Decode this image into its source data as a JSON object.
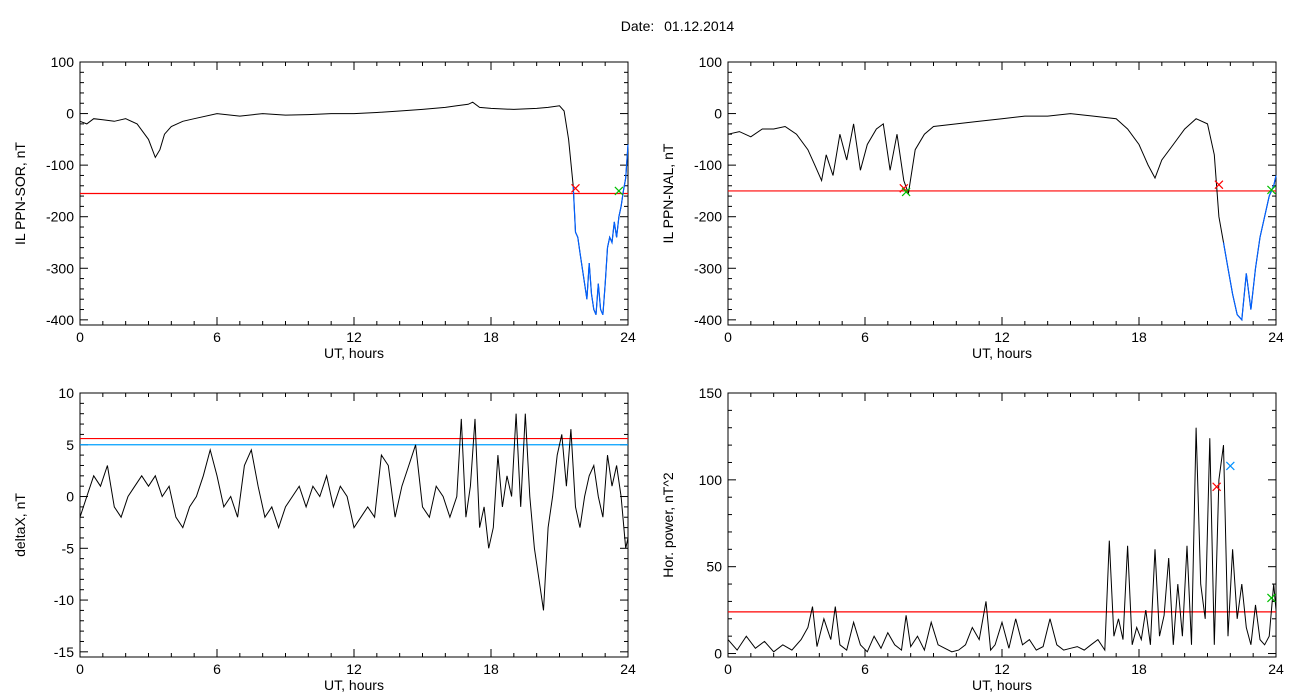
{
  "header": {
    "date_label": "Date:",
    "date_value": "01.12.2014"
  },
  "colors": {
    "trace": "#000000",
    "threshold": "#ff0000",
    "threshold2": "#00a0ff",
    "highlight": "#0060ff",
    "marker_red": "#ff0000",
    "marker_green": "#00c000",
    "marker_blue": "#0090ff"
  },
  "chart_data": [
    {
      "type": "line",
      "ylabel": "IL PPN-SOR, nT",
      "xlabel": "UT, hours",
      "xlim": [
        0,
        24
      ],
      "ylim": [
        -410,
        100
      ],
      "xticks": [
        "0",
        "6",
        "12",
        "18",
        "24"
      ],
      "yticks": [
        "100",
        "0",
        "-100",
        "-200",
        "-300",
        "-400"
      ],
      "ytick_values": [
        100,
        0,
        -100,
        -200,
        -300,
        -400
      ],
      "thresholds": [
        {
          "value": -155,
          "color": "red"
        }
      ],
      "highlight_range": [
        21.6,
        24
      ],
      "series": [
        {
          "x": [
            0,
            0.3,
            0.6,
            1.0,
            1.5,
            2.0,
            2.5,
            3.0,
            3.3,
            3.5,
            3.7,
            4.0,
            4.5,
            5.0,
            6.0,
            7.0,
            8.0,
            9.0,
            10.0,
            11.0,
            12.0,
            13.0,
            14.0,
            15.0,
            16.0,
            16.5,
            17.0,
            17.2,
            17.5,
            18.0,
            19.0,
            20.0,
            20.5,
            21.0,
            21.2,
            21.4,
            21.6,
            21.7,
            21.8,
            21.9,
            22.0,
            22.1,
            22.2,
            22.3,
            22.4,
            22.5,
            22.6,
            22.7,
            22.8,
            22.9,
            23.0,
            23.1,
            23.2,
            23.3,
            23.4,
            23.5,
            23.6,
            23.7,
            23.8,
            23.9,
            24.0
          ],
          "values": [
            -15,
            -20,
            -10,
            -12,
            -15,
            -10,
            -20,
            -50,
            -85,
            -70,
            -40,
            -25,
            -15,
            -10,
            0,
            -5,
            0,
            -3,
            -2,
            0,
            0,
            2,
            5,
            8,
            12,
            15,
            18,
            22,
            12,
            10,
            8,
            10,
            12,
            15,
            5,
            -50,
            -140,
            -230,
            -240,
            -270,
            -300,
            -330,
            -360,
            -290,
            -350,
            -380,
            -390,
            -330,
            -380,
            -390,
            -330,
            -260,
            -240,
            -250,
            -210,
            -240,
            -200,
            -180,
            -150,
            -125,
            -60
          ]
        }
      ],
      "markers": [
        {
          "x": 21.7,
          "y": -145,
          "color": "red"
        },
        {
          "x": 23.6,
          "y": -150,
          "color": "green"
        }
      ]
    },
    {
      "type": "line",
      "ylabel": "IL PPN-NAL, nT",
      "xlabel": "UT, hours",
      "xlim": [
        0,
        24
      ],
      "ylim": [
        -410,
        100
      ],
      "xticks": [
        "0",
        "6",
        "12",
        "18",
        "24"
      ],
      "yticks": [
        "100",
        "0",
        "-100",
        "-200",
        "-300",
        "-400"
      ],
      "ytick_values": [
        100,
        0,
        -100,
        -200,
        -300,
        -400
      ],
      "thresholds": [
        {
          "value": -150,
          "color": "red"
        }
      ],
      "highlight_range": [
        21.6,
        24
      ],
      "series": [
        {
          "x": [
            0,
            0.5,
            1.0,
            1.5,
            2.0,
            2.5,
            3.0,
            3.5,
            3.8,
            4.1,
            4.3,
            4.6,
            4.9,
            5.2,
            5.5,
            5.8,
            6.1,
            6.5,
            6.8,
            7.1,
            7.4,
            7.7,
            7.9,
            8.2,
            8.6,
            9.0,
            10.0,
            11.0,
            12.0,
            13.0,
            14.0,
            15.0,
            16.0,
            17.0,
            17.5,
            18.0,
            18.4,
            18.7,
            19.0,
            19.5,
            20.0,
            20.5,
            21.0,
            21.3,
            21.5,
            21.7,
            21.9,
            22.1,
            22.3,
            22.5,
            22.7,
            22.9,
            23.1,
            23.3,
            23.5,
            23.7,
            23.9,
            24.0
          ],
          "values": [
            -40,
            -35,
            -45,
            -30,
            -30,
            -25,
            -40,
            -70,
            -100,
            -130,
            -80,
            -120,
            -40,
            -90,
            -20,
            -110,
            -60,
            -30,
            -20,
            -110,
            -40,
            -130,
            -155,
            -70,
            -40,
            -25,
            -20,
            -15,
            -10,
            -5,
            -5,
            0,
            -5,
            -10,
            -30,
            -60,
            -100,
            -125,
            -90,
            -60,
            -30,
            -10,
            -20,
            -80,
            -200,
            -250,
            -300,
            -350,
            -390,
            -400,
            -310,
            -380,
            -300,
            -240,
            -200,
            -160,
            -140,
            -120
          ]
        }
      ],
      "markers": [
        {
          "x": 7.7,
          "y": -145,
          "color": "red"
        },
        {
          "x": 7.8,
          "y": -152,
          "color": "green"
        },
        {
          "x": 21.5,
          "y": -138,
          "color": "red"
        },
        {
          "x": 23.8,
          "y": -148,
          "color": "green"
        }
      ]
    },
    {
      "type": "line",
      "ylabel": "deltaX, nT",
      "xlabel": "UT, hours",
      "xlim": [
        0,
        24
      ],
      "ylim": [
        -15.5,
        10
      ],
      "xticks": [
        "0",
        "6",
        "12",
        "18",
        "24"
      ],
      "yticks": [
        "10",
        "5",
        "0",
        "-5",
        "-10",
        "-15"
      ],
      "ytick_values": [
        10,
        5,
        0,
        -5,
        -10,
        -15
      ],
      "thresholds": [
        {
          "value": 5.6,
          "color": "red"
        },
        {
          "value": 5.0,
          "color": "cyan"
        }
      ],
      "series": [
        {
          "x": [
            0,
            0.3,
            0.6,
            0.9,
            1.2,
            1.5,
            1.8,
            2.1,
            2.4,
            2.7,
            3.0,
            3.3,
            3.6,
            3.9,
            4.2,
            4.5,
            4.8,
            5.1,
            5.4,
            5.7,
            6.0,
            6.3,
            6.6,
            6.9,
            7.2,
            7.5,
            7.8,
            8.1,
            8.4,
            8.7,
            9.0,
            9.3,
            9.6,
            9.9,
            10.2,
            10.5,
            10.8,
            11.1,
            11.4,
            11.7,
            12.0,
            12.3,
            12.6,
            12.9,
            13.2,
            13.5,
            13.8,
            14.1,
            14.4,
            14.7,
            15.0,
            15.3,
            15.6,
            15.9,
            16.2,
            16.5,
            16.7,
            16.9,
            17.1,
            17.3,
            17.5,
            17.7,
            17.9,
            18.1,
            18.3,
            18.5,
            18.7,
            18.9,
            19.1,
            19.3,
            19.5,
            19.7,
            19.9,
            20.1,
            20.3,
            20.5,
            20.7,
            20.9,
            21.1,
            21.3,
            21.5,
            21.7,
            21.9,
            22.1,
            22.3,
            22.5,
            22.7,
            22.9,
            23.1,
            23.3,
            23.5,
            23.7,
            23.9,
            24.0
          ],
          "values": [
            -2,
            0,
            2,
            1,
            3,
            -1,
            -2,
            0,
            1,
            2,
            1,
            2,
            0,
            1,
            -2,
            -3,
            -1,
            0,
            2,
            4.5,
            2,
            -1,
            0,
            -2,
            3,
            4.5,
            1,
            -2,
            -1,
            -3,
            -1,
            0,
            1,
            -1,
            1,
            0,
            2,
            -1,
            1,
            0,
            -3,
            -2,
            -1,
            -2,
            4,
            3,
            -2,
            1,
            3,
            5,
            -1,
            -2,
            1,
            0,
            -2,
            0,
            7.5,
            -2,
            1,
            7.5,
            -3,
            -1,
            -5,
            -3,
            4,
            -1,
            2,
            0,
            8,
            -1,
            8,
            0,
            -5,
            -8,
            -11,
            -3,
            0,
            4,
            6,
            1,
            6.5,
            -1,
            -3,
            0,
            2,
            3,
            0,
            -2,
            4,
            1,
            3,
            0,
            -5,
            -4
          ]
        }
      ],
      "markers": []
    },
    {
      "type": "line",
      "ylabel": "Hor. power, nT^2",
      "xlabel": "UT, hours",
      "xlim": [
        0,
        24
      ],
      "ylim": [
        -2,
        150
      ],
      "xticks": [
        "0",
        "6",
        "12",
        "18",
        "24"
      ],
      "yticks": [
        "150",
        "100",
        "50",
        "0"
      ],
      "ytick_values": [
        150,
        100,
        50,
        0
      ],
      "thresholds": [
        {
          "value": 24,
          "color": "red"
        }
      ],
      "series": [
        {
          "x": [
            0,
            0.4,
            0.8,
            1.2,
            1.6,
            2.0,
            2.4,
            2.8,
            3.2,
            3.5,
            3.7,
            3.9,
            4.2,
            4.5,
            4.7,
            4.9,
            5.2,
            5.5,
            5.8,
            6.1,
            6.4,
            6.7,
            7.0,
            7.3,
            7.6,
            7.8,
            8.0,
            8.3,
            8.6,
            8.9,
            9.2,
            9.5,
            9.8,
            10.1,
            10.4,
            10.7,
            11.0,
            11.3,
            11.5,
            11.7,
            12.0,
            12.3,
            12.6,
            12.9,
            13.2,
            13.5,
            13.8,
            14.1,
            14.4,
            14.7,
            15.0,
            15.3,
            15.6,
            15.9,
            16.2,
            16.5,
            16.7,
            16.9,
            17.1,
            17.3,
            17.5,
            17.7,
            17.9,
            18.1,
            18.3,
            18.5,
            18.7,
            18.9,
            19.1,
            19.3,
            19.5,
            19.7,
            19.9,
            20.1,
            20.3,
            20.5,
            20.7,
            20.9,
            21.1,
            21.3,
            21.5,
            21.7,
            21.9,
            22.1,
            22.3,
            22.5,
            22.7,
            22.9,
            23.1,
            23.3,
            23.5,
            23.7,
            23.9,
            24.0
          ],
          "values": [
            8,
            2,
            10,
            3,
            7,
            1,
            5,
            2,
            8,
            15,
            27,
            4,
            20,
            8,
            27,
            5,
            2,
            18,
            5,
            1,
            10,
            3,
            12,
            5,
            2,
            22,
            4,
            10,
            2,
            18,
            5,
            3,
            1,
            2,
            5,
            15,
            8,
            30,
            2,
            5,
            18,
            3,
            20,
            5,
            8,
            2,
            4,
            20,
            5,
            2,
            3,
            4,
            2,
            5,
            8,
            2,
            65,
            10,
            20,
            8,
            62,
            5,
            15,
            8,
            25,
            5,
            60,
            10,
            22,
            55,
            5,
            40,
            10,
            62,
            5,
            130,
            40,
            20,
            124,
            5,
            100,
            120,
            10,
            60,
            20,
            40,
            15,
            5,
            28,
            8,
            5,
            10,
            40,
            25
          ]
        }
      ],
      "markers": [
        {
          "x": 21.4,
          "y": 96,
          "color": "red"
        },
        {
          "x": 22.0,
          "y": 108,
          "color": "blue"
        },
        {
          "x": 23.8,
          "y": 32,
          "color": "green"
        }
      ]
    }
  ]
}
